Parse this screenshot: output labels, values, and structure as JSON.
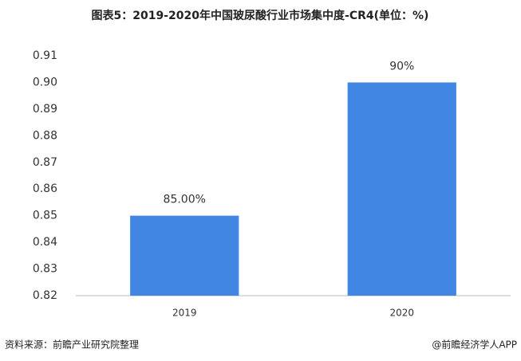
{
  "chart_data": {
    "type": "bar",
    "title": "图表5：2019-2020年中国玻尿酸行业市场集中度-CR4(单位：%)",
    "categories": [
      "2019",
      "2020"
    ],
    "values": [
      0.85,
      0.9
    ],
    "value_labels": [
      "85.00%",
      "90%"
    ],
    "color": "#4286e3",
    "ylim": [
      0.82,
      0.91
    ],
    "yticks": [
      0.82,
      0.83,
      0.84,
      0.85,
      0.86,
      0.87,
      0.88,
      0.89,
      {
        "value": 0.9,
        "label": "0.90"
      },
      0.91
    ],
    "grid": false
  },
  "footer": {
    "source": "资料来源：前瞻产业研究院整理",
    "credit": "@前瞻经济学人APP"
  }
}
